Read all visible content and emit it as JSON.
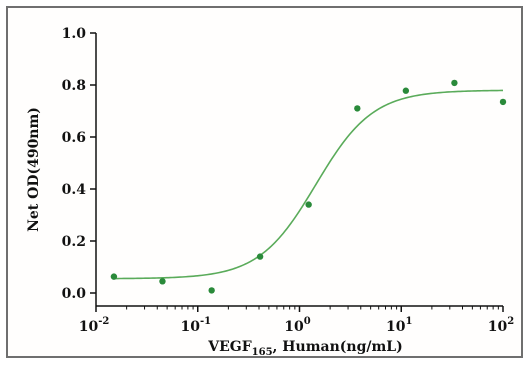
{
  "chart_data": {
    "type": "scatter",
    "xscale": "log",
    "xlim": [
      0.01,
      100
    ],
    "ylim": [
      -0.05,
      1.0
    ],
    "xlabel": {
      "base": "VEGF",
      "sub": "165",
      "rest": ", Human(ng/mL)"
    },
    "ylabel": "Net OD(490nm)",
    "grid": false,
    "yticks": [
      {
        "value": 0.0,
        "label": "0.0"
      },
      {
        "value": 0.2,
        "label": "0.2"
      },
      {
        "value": 0.4,
        "label": "0.4"
      },
      {
        "value": 0.6,
        "label": "0.6"
      },
      {
        "value": 0.8,
        "label": "0.8"
      },
      {
        "value": 1.0,
        "label": "1.0"
      }
    ],
    "xticks": [
      {
        "value": 0.01,
        "base": "10",
        "exp": "-2"
      },
      {
        "value": 0.1,
        "base": "10",
        "exp": "-1"
      },
      {
        "value": 1,
        "base": "10",
        "exp": "0"
      },
      {
        "value": 10,
        "base": "10",
        "exp": "1"
      },
      {
        "value": 100,
        "base": "10",
        "exp": "2"
      }
    ],
    "points": [
      {
        "x": 0.015,
        "y": 0.063
      },
      {
        "x": 0.045,
        "y": 0.045
      },
      {
        "x": 0.137,
        "y": 0.01
      },
      {
        "x": 0.41,
        "y": 0.14
      },
      {
        "x": 1.23,
        "y": 0.34
      },
      {
        "x": 3.7,
        "y": 0.71
      },
      {
        "x": 11.1,
        "y": 0.778
      },
      {
        "x": 33.3,
        "y": 0.808
      },
      {
        "x": 100,
        "y": 0.735
      }
    ],
    "fit": {
      "bottom": 0.055,
      "top": 0.78,
      "ec50": 1.45,
      "hill": 1.55
    },
    "colors": {
      "point": "#2a8a3a",
      "curve": "#5aab5a",
      "axis": "#111111"
    }
  }
}
